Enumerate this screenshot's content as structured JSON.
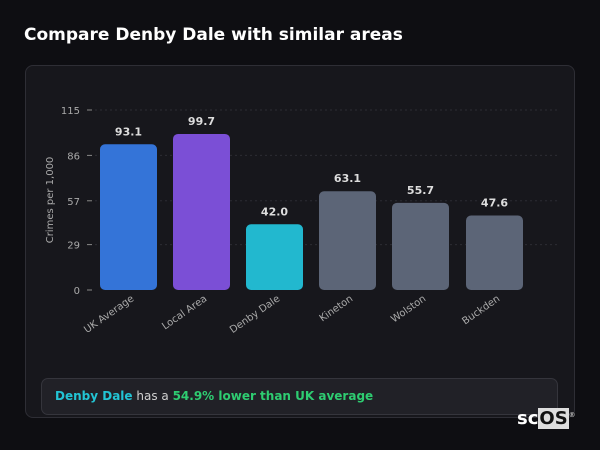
{
  "title": "Compare Denby Dale with similar areas",
  "chart_data": {
    "type": "bar",
    "ylabel": "Crimes per 1,000",
    "ylim": [
      0,
      115
    ],
    "yticks": [
      0,
      29,
      57,
      86,
      115
    ],
    "grid": true,
    "categories": [
      "UK Average",
      "Local Area",
      "Denby Dale",
      "Kineton",
      "Wolston",
      "Buckden"
    ],
    "values": [
      93.1,
      99.7,
      42.0,
      63.1,
      55.7,
      47.6
    ],
    "data_labels": [
      "93.1",
      "99.7",
      "42.0",
      "63.1",
      "55.7",
      "47.6"
    ],
    "colors": [
      "#3474d8",
      "#7b4fd6",
      "#22b8cf",
      "#5c6577",
      "#5c6577",
      "#5c6577"
    ]
  },
  "summary": {
    "name": "Denby Dale",
    "middle": " has a ",
    "highlight": "54.9% lower than UK average"
  },
  "logo": {
    "text_a": "sc",
    "text_b": "OS",
    "mark": "®"
  }
}
